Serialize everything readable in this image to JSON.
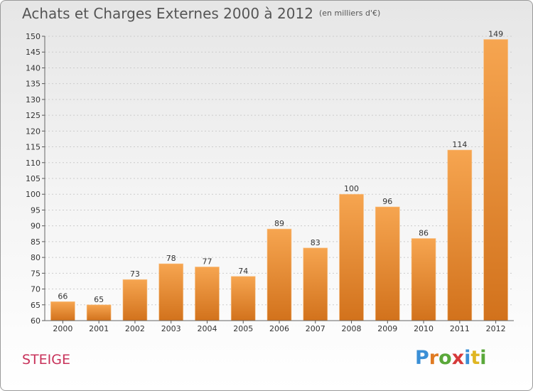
{
  "header": {
    "title": "Achats et Charges Externes 2000 à 2012",
    "subtitle": "(en milliers d'€)"
  },
  "footer": {
    "city": "STEIGE",
    "logo": "Proxiti"
  },
  "colors": {
    "bar_light": "#f6a550",
    "bar_dark": "#d2721c",
    "city": "#c8325a",
    "grid": "#cccccc"
  },
  "chart_data": {
    "type": "bar",
    "categories": [
      "2000",
      "2001",
      "2002",
      "2003",
      "2004",
      "2005",
      "2006",
      "2007",
      "2008",
      "2009",
      "2010",
      "2011",
      "2012"
    ],
    "values": [
      66,
      65,
      73,
      78,
      77,
      74,
      89,
      83,
      100,
      96,
      86,
      114,
      149
    ],
    "title": "Achats et Charges Externes 2000 à 2012",
    "subtitle": "(en milliers d'€)",
    "xlabel": "",
    "ylabel": "",
    "ylim": [
      60,
      150
    ],
    "yticks": [
      60,
      65,
      70,
      75,
      80,
      85,
      90,
      95,
      100,
      105,
      110,
      115,
      120,
      125,
      130,
      135,
      140,
      145,
      150
    ],
    "grid": true,
    "legend": "none"
  }
}
